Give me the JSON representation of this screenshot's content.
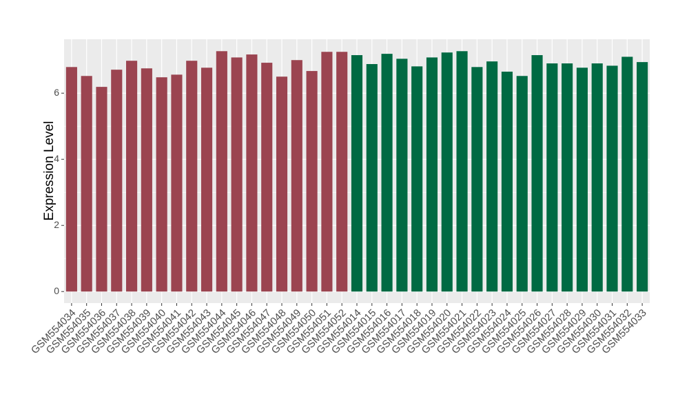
{
  "chart_data": {
    "type": "bar",
    "y_label": "Expression Level",
    "categories": [
      "GSM554034",
      "GSM554035",
      "GSM554036",
      "GSM554037",
      "GSM554038",
      "GSM554039",
      "GSM554040",
      "GSM554041",
      "GSM554042",
      "GSM554043",
      "GSM554044",
      "GSM554045",
      "GSM554046",
      "GSM554047",
      "GSM554048",
      "GSM554049",
      "GSM554050",
      "GSM554051",
      "GSM554052",
      "GSM554014",
      "GSM554015",
      "GSM554016",
      "GSM554017",
      "GSM554018",
      "GSM554019",
      "GSM554020",
      "GSM554021",
      "GSM554022",
      "GSM554023",
      "GSM554024",
      "GSM554025",
      "GSM554026",
      "GSM554027",
      "GSM554028",
      "GSM554029",
      "GSM554030",
      "GSM554031",
      "GSM554032",
      "GSM554033"
    ],
    "values": [
      6.79,
      6.52,
      6.19,
      6.71,
      6.98,
      6.75,
      6.48,
      6.56,
      6.98,
      6.77,
      7.27,
      7.08,
      7.17,
      6.92,
      6.5,
      7.0,
      6.67,
      7.25,
      7.25,
      7.15,
      6.88,
      7.19,
      7.04,
      6.81,
      7.08,
      7.23,
      7.27,
      6.79,
      6.96,
      6.65,
      6.52,
      7.15,
      6.9,
      6.9,
      6.77,
      6.9,
      6.83,
      7.1,
      6.94
    ],
    "colors": [
      "#9b4450",
      "#9b4450",
      "#9b4450",
      "#9b4450",
      "#9b4450",
      "#9b4450",
      "#9b4450",
      "#9b4450",
      "#9b4450",
      "#9b4450",
      "#9b4450",
      "#9b4450",
      "#9b4450",
      "#9b4450",
      "#9b4450",
      "#9b4450",
      "#9b4450",
      "#9b4450",
      "#9b4450",
      "#006a43",
      "#006a43",
      "#006a43",
      "#006a43",
      "#006a43",
      "#006a43",
      "#006a43",
      "#006a43",
      "#006a43",
      "#006a43",
      "#006a43",
      "#006a43",
      "#006a43",
      "#006a43",
      "#006a43",
      "#006a43",
      "#006a43",
      "#006a43",
      "#006a43",
      "#006a43"
    ],
    "ylim": [
      -0.35,
      7.63
    ],
    "yticks": [
      0,
      2,
      4,
      6
    ],
    "grid": true
  }
}
